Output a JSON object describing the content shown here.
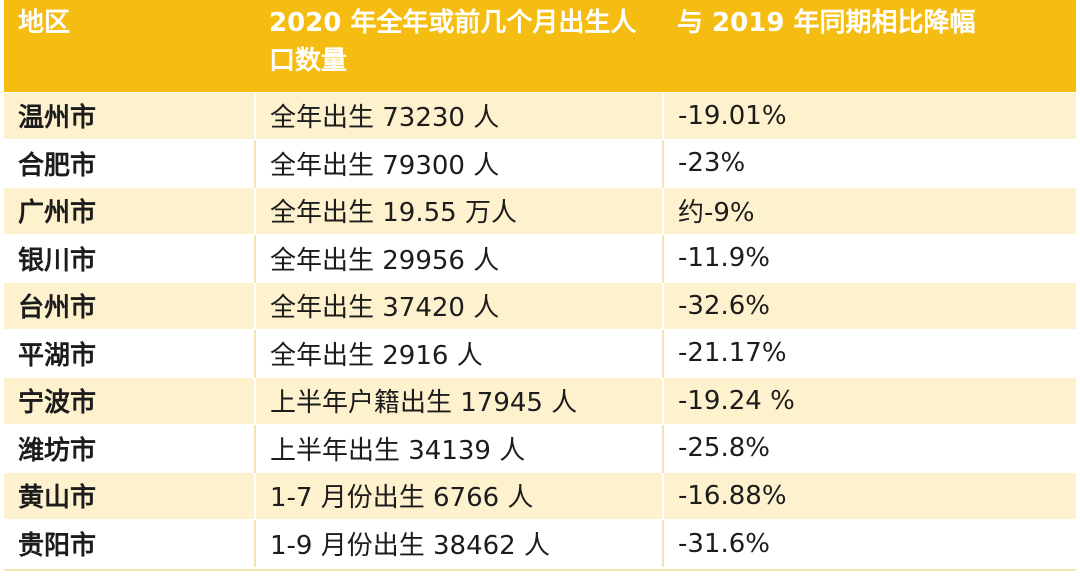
{
  "table": {
    "headers": [
      "地区",
      "2020 年全年或前几个月出生人口数量",
      "与 2019 年同期相比降幅"
    ],
    "rows": [
      [
        "温州市",
        "全年出生 73230 人",
        "-19.01%"
      ],
      [
        "合肥市",
        "全年出生 79300 人",
        "-23%"
      ],
      [
        "广州市",
        "全年出生 19.55 万人",
        "约-9%"
      ],
      [
        "银川市",
        "全年出生 29956 人",
        "-11.9%"
      ],
      [
        "台州市",
        "全年出生 37420 人",
        "-32.6%"
      ],
      [
        "平湖市",
        "全年出生 2916 人",
        "-21.17%"
      ],
      [
        "宁波市",
        "上半年户籍出生 17945 人",
        "-19.24 %"
      ],
      [
        "潍坊市",
        "上半年出生 34139 人",
        "-25.8%"
      ],
      [
        "黄山市",
        "1-7 月份出生 6766 人",
        "-16.88%"
      ],
      [
        "贵阳市",
        "1-9 月份出生 38462 人",
        "-31.6%"
      ]
    ]
  },
  "colors": {
    "header_bg": "#f5bc12",
    "header_text": "#ffffff",
    "stripe": "#fdf1ce"
  }
}
